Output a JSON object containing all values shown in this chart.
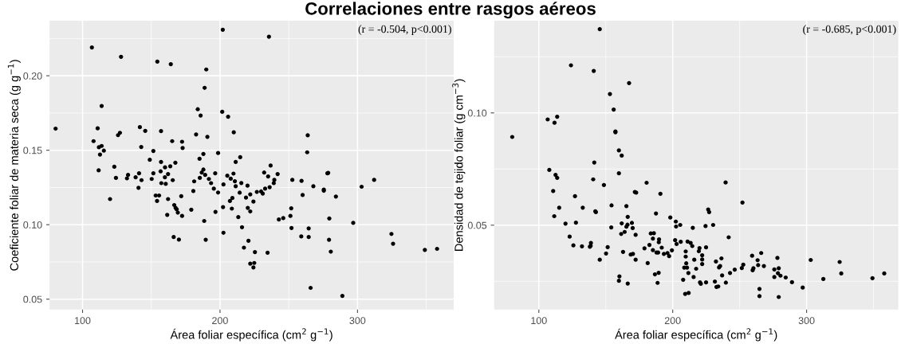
{
  "chart_data": [
    {
      "type": "scatter",
      "title": "Correlaciones entre rasgos aéreos",
      "xlabel": "Área foliar específica (cm$^{2}$ g$^{−1}$)",
      "ylabel": "Coeficiente foliar de materia seca (g g$^{−1}$)",
      "annotations": [
        "(r = -0.504, p<0.001)"
      ],
      "grid": true,
      "marker": "circle",
      "xlim": [
        76,
        370
      ],
      "ylim": [
        0.043,
        0.237
      ],
      "xticks": [
        100,
        200,
        300
      ],
      "yticks": [
        {
          "value": 0.05,
          "label": "0.05"
        },
        {
          "value": 0.1,
          "label": "0.10"
        },
        {
          "value": 0.15,
          "label": "0.15"
        },
        {
          "value": 0.2,
          "label": "0.20"
        }
      ],
      "series": [
        {
          "color": "#000000",
          "x": [
            80.4,
            106.8,
            128.0,
            154.4,
            164.2,
            190.0,
            188.8,
            202.0,
            113.9,
            183.8,
            185.9,
            201.6,
            205.9,
            111.0,
            141.7,
            145.6,
            157.1,
            125.8,
            127.2,
            108.0,
            210.0,
            182.6,
            190.8,
            165.2,
            172.4,
            172.8,
            142.7,
            111.9,
            113.9,
            115.5,
            112.7,
            151.5,
            198.6,
            187.9,
            214.7,
            148.9,
            185.1,
            157.1,
            211.4,
            167.5,
            163.8,
            160.0,
            111.7,
            123.1,
            187.9,
            156.8,
            186.7,
            133.1,
            141.1,
            151.5,
            162.2,
            189.2,
            196.5,
            209.8,
            205.3,
            124.3,
            132.3,
            138.6,
            142.9,
            150.3,
            159.9,
            165.6,
            185.3,
            191.9,
            207.8,
            181.2,
            157.3,
            160.5,
            193.5,
            202.5,
            210.8,
            211.4,
            215.5,
            220.0,
            140.7,
            195.5,
            198.6,
            180.6,
            214.3,
            222.0,
            153.2,
            155.7,
            171.8,
            120.0,
            154.2,
            162.2,
            209.0,
            207.2,
            218.9,
            224.3,
            166.7,
            167.7,
            168.5,
            169.3,
            172.4,
            179.1,
            196.7,
            202.2,
            208.6,
            220.2,
            222.0,
            161.6,
            213.3,
            188.5,
            216.0,
            202.5,
            166.3,
            170.1,
            189.6,
            220.7,
            217.4,
            225.4,
            222.0,
            224.9,
            224.3,
            235.6,
            263.8,
            263.4,
            236.8,
            232.1,
            235.0,
            241.9,
            239.5,
            239.1,
            252.6,
            259.3,
            278.1,
            278.7,
            312.1,
            267.9,
            275.5,
            275.5,
            303.0,
            229.9,
            231.1,
            232.8,
            236.1,
            226.8,
            260.1,
            284.3,
            251.8,
            251.2,
            242.8,
            246.0,
            279.5,
            296.9,
            252.0,
            264.5,
            259.1,
            264.5,
            279.3,
            280.6,
            324.7,
            325.9,
            349.0,
            357.9,
            234.6,
            265.9,
            289.0
          ],
          "values": [
            0.1645,
            0.219,
            0.2127,
            0.2095,
            0.2078,
            0.2042,
            0.1919,
            0.2309,
            0.1797,
            0.1775,
            0.1733,
            0.1758,
            0.1725,
            0.1647,
            0.1655,
            0.163,
            0.1628,
            0.1601,
            0.1617,
            0.1561,
            0.162,
            0.1606,
            0.159,
            0.1561,
            0.1557,
            0.1515,
            0.1522,
            0.152,
            0.1529,
            0.1497,
            0.1471,
            0.1495,
            0.1481,
            0.1475,
            0.1453,
            0.1436,
            0.1443,
            0.1421,
            0.1421,
            0.1416,
            0.1392,
            0.1385,
            0.1365,
            0.1389,
            0.137,
            0.1358,
            0.135,
            0.1334,
            0.1345,
            0.1345,
            0.134,
            0.1334,
            0.1345,
            0.1343,
            0.1329,
            0.1314,
            0.1311,
            0.1318,
            0.1299,
            0.1307,
            0.1318,
            0.1299,
            0.1314,
            0.1307,
            0.1309,
            0.1291,
            0.1279,
            0.1274,
            0.1279,
            0.127,
            0.1292,
            0.1258,
            0.128,
            0.1262,
            0.1248,
            0.1242,
            0.1216,
            0.1226,
            0.1215,
            0.1203,
            0.1196,
            0.1196,
            0.1191,
            0.1172,
            0.1159,
            0.1172,
            0.1179,
            0.1159,
            0.1182,
            0.1155,
            0.1132,
            0.1113,
            0.1103,
            0.1081,
            0.1059,
            0.1101,
            0.1086,
            0.1118,
            0.1108,
            0.1113,
            0.1089,
            0.1066,
            0.1051,
            0.1025,
            0.0983,
            0.0946,
            0.0917,
            0.09,
            0.0899,
            0.0892,
            0.0846,
            0.0816,
            0.0738,
            0.0743,
            0.0713,
            0.2262,
            0.16,
            0.1486,
            0.1397,
            0.135,
            0.1324,
            0.134,
            0.1301,
            0.1279,
            0.1301,
            0.1294,
            0.1345,
            0.1348,
            0.1301,
            0.1258,
            0.1236,
            0.1228,
            0.1255,
            0.1223,
            0.1209,
            0.1242,
            0.1252,
            0.122,
            0.1199,
            0.1189,
            0.111,
            0.1059,
            0.1035,
            0.1044,
            0.1042,
            0.1012,
            0.0978,
            0.0975,
            0.0921,
            0.0917,
            0.0899,
            0.0819,
            0.0938,
            0.0872,
            0.0831,
            0.0838,
            0.0812,
            0.0576,
            0.0522
          ]
        }
      ]
    },
    {
      "type": "scatter",
      "xlabel": "Área foliar específica (cm$^{2}$ g$^{−1}$)",
      "ylabel": "Densidad de tejido foliar (g cm$^{−3}$)",
      "annotations": [
        "(r = -0.685, p<0.001)"
      ],
      "grid": true,
      "marker": "circle",
      "xlim": [
        66.6,
        368.5
      ],
      "ylim": [
        0.0124,
        0.1411
      ],
      "xticks": [
        100,
        200,
        300
      ],
      "yticks": [
        {
          "value": 0.05,
          "label": "0.05"
        },
        {
          "value": 0.1,
          "label": "0.10"
        }
      ],
      "series": [
        {
          "color": "#000000",
          "x": [
            80.1,
            145.5,
            124.0,
            141.0,
            167.4,
            153.1,
            155.9,
            106.6,
            111.7,
            113.7,
            157.2,
            157.2,
            159.8,
            161.9,
            141.4,
            107.8,
            159.8,
            112.5,
            113.7,
            140.6,
            148.6,
            180.5,
            110.7,
            171.7,
            172.7,
            190.8,
            127.0,
            115.2,
            132.8,
            154.3,
            165.4,
            142.2,
            142.6,
            111.5,
            187.5,
            166.4,
            198.2,
            119.9,
            127.7,
            161.9,
            166.2,
            165.4,
            169.5,
            154.1,
            170.1,
            161.5,
            164.1,
            172.3,
            183.6,
            185.9,
            185.2,
            123.0,
            138.9,
            138.7,
            189.8,
            189.6,
            125.8,
            132.2,
            151.4,
            178.9,
            182.6,
            191.8,
            138.1,
            162.9,
            185.2,
            187.9,
            189.1,
            150.2,
            168.6,
            170.3,
            193.4,
            196.1,
            197.3,
            199.4,
            145.5,
            172.3,
            181.3,
            186.7,
            189.5,
            160.2,
            159.8,
            166.4,
            188.7,
            239.5,
            252.1,
            226.5,
            227.2,
            202.3,
            202.5,
            205.6,
            215.0,
            224.5,
            230.2,
            241.8,
            201.8,
            202.9,
            206.0,
            211.1,
            213.4,
            214.6,
            220.0,
            224.9,
            209.7,
            219.5,
            209.7,
            222.0,
            222.0,
            216.1,
            236.4,
            210.1,
            222.0,
            232.3,
            259.3,
            266.1,
            263.4,
            278.2,
            303.1,
            324.7,
            263.8,
            268.1,
            252.7,
            251.6,
            259.7,
            260.3,
            275.9,
            279.2,
            234.6,
            235.4,
            246.3,
            208.6,
            210.7,
            217.5,
            242.8,
            211.7,
            236.9,
            275.9,
            278.6,
            280.5,
            284.4,
            215.6,
            207.8,
            325.9,
            312.5,
            349.2,
            358.0,
            289.1,
            220.4,
            221.0,
            224.9,
            231.5,
            239.7,
            232.7,
            234.0,
            297.1,
            264.8,
            209.3,
            211.9,
            264.8,
            279.2
          ],
          "values": [
            0.0893,
            0.1373,
            0.1212,
            0.1187,
            0.1133,
            0.1084,
            0.1015,
            0.0971,
            0.0956,
            0.0983,
            0.0917,
            0.0914,
            0.0833,
            0.081,
            0.0779,
            0.0746,
            0.0731,
            0.0724,
            0.0711,
            0.0704,
            0.0679,
            0.0689,
            0.0652,
            0.0648,
            0.0645,
            0.064,
            0.0629,
            0.0578,
            0.0578,
            0.0588,
            0.0585,
            0.0562,
            0.0558,
            0.054,
            0.0552,
            0.0537,
            0.0534,
            0.0507,
            0.0511,
            0.0508,
            0.0502,
            0.0493,
            0.051,
            0.049,
            0.0487,
            0.0461,
            0.047,
            0.0457,
            0.0463,
            0.0464,
            0.044,
            0.0449,
            0.0421,
            0.0408,
            0.0437,
            0.0424,
            0.041,
            0.0406,
            0.0402,
            0.0397,
            0.0412,
            0.04,
            0.0404,
            0.0381,
            0.0389,
            0.0378,
            0.0378,
            0.0374,
            0.0369,
            0.0372,
            0.0372,
            0.0376,
            0.0362,
            0.0388,
            0.0346,
            0.0346,
            0.0331,
            0.0281,
            0.0288,
            0.0272,
            0.0252,
            0.024,
            0.0243,
            0.069,
            0.0601,
            0.057,
            0.0558,
            0.0516,
            0.0494,
            0.0501,
            0.0488,
            0.0496,
            0.0501,
            0.0446,
            0.0433,
            0.0416,
            0.0426,
            0.0427,
            0.0421,
            0.0407,
            0.0398,
            0.0401,
            0.0383,
            0.0384,
            0.036,
            0.0366,
            0.0347,
            0.0346,
            0.0352,
            0.033,
            0.0327,
            0.0338,
            0.0364,
            0.0376,
            0.0344,
            0.0354,
            0.0345,
            0.0336,
            0.0322,
            0.0318,
            0.0324,
            0.0309,
            0.0299,
            0.0308,
            0.0303,
            0.0308,
            0.0312,
            0.0318,
            0.0302,
            0.0311,
            0.0311,
            0.0306,
            0.0287,
            0.0287,
            0.0276,
            0.0269,
            0.0286,
            0.0275,
            0.0267,
            0.0269,
            0.0257,
            0.0285,
            0.026,
            0.0264,
            0.0285,
            0.0246,
            0.0245,
            0.0239,
            0.0245,
            0.0249,
            0.0244,
            0.0225,
            0.0227,
            0.0222,
            0.0216,
            0.0194,
            0.0198,
            0.0184,
            0.018
          ]
        }
      ]
    }
  ]
}
